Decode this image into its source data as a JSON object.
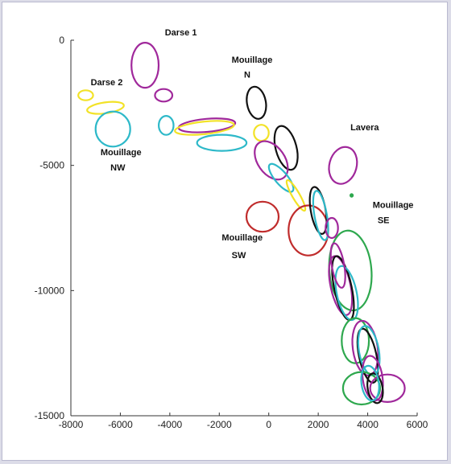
{
  "chart_data": {
    "type": "scatter",
    "title": "",
    "xlabel": "",
    "ylabel": "",
    "xlim": [
      -8000,
      6000
    ],
    "ylim": [
      -15000,
      0
    ],
    "x_ticks": [
      "-8000",
      "-6000",
      "-4000",
      "-2000",
      "0",
      "2000",
      "4000",
      "6000"
    ],
    "y_ticks": [
      "0",
      "-5000",
      "-10000",
      "-15000"
    ],
    "grid": false,
    "legend": "none",
    "colors": {
      "magenta": "#a0289b",
      "yellow": "#f2e227",
      "cyan": "#2eb9c9",
      "black": "#111111",
      "red": "#c02c2c",
      "green": "#2ea84e"
    },
    "annotations": [
      {
        "text": "Darse 1",
        "x": -4200,
        "y": 200
      },
      {
        "text": "Darse 2",
        "x": -7200,
        "y": -1800
      },
      {
        "text": "Mouillage",
        "x": -1500,
        "y": -900
      },
      {
        "text": "N",
        "x": -1000,
        "y": -1500
      },
      {
        "text": "Lavera",
        "x": 3300,
        "y": -3600
      },
      {
        "text": "Mouillage",
        "x": -6800,
        "y": -4600
      },
      {
        "text": "NW",
        "x": -6400,
        "y": -5200
      },
      {
        "text": "Mouillage",
        "x": 4200,
        "y": -6700
      },
      {
        "text": "SE",
        "x": 4400,
        "y": -7300
      },
      {
        "text": "Mouillage",
        "x": -1900,
        "y": -8000
      },
      {
        "text": "SW",
        "x": -1500,
        "y": -8700
      }
    ],
    "ellipses": [
      {
        "color": "magenta",
        "cx": -5000,
        "cy": -1000,
        "rx": 550,
        "ry": 900,
        "angle": 0
      },
      {
        "color": "magenta",
        "cx": -4250,
        "cy": -2200,
        "rx": 350,
        "ry": 250,
        "angle": 0
      },
      {
        "color": "yellow",
        "cx": -7400,
        "cy": -2200,
        "rx": 300,
        "ry": 200,
        "angle": 0
      },
      {
        "color": "yellow",
        "cx": -6600,
        "cy": -2700,
        "rx": 750,
        "ry": 220,
        "angle": -8
      },
      {
        "color": "cyan",
        "cx": -6300,
        "cy": -3550,
        "rx": 700,
        "ry": 700,
        "angle": 0
      },
      {
        "color": "cyan",
        "cx": -4150,
        "cy": -3400,
        "rx": 300,
        "ry": 380,
        "angle": 0
      },
      {
        "color": "magenta",
        "cx": -2500,
        "cy": -3400,
        "rx": 1150,
        "ry": 260,
        "angle": -5
      },
      {
        "color": "yellow",
        "cx": -2600,
        "cy": -3500,
        "rx": 1200,
        "ry": 250,
        "angle": -6
      },
      {
        "color": "cyan",
        "cx": -1900,
        "cy": -4100,
        "rx": 1000,
        "ry": 320,
        "angle": 0
      },
      {
        "color": "black",
        "cx": -500,
        "cy": -2500,
        "rx": 380,
        "ry": 650,
        "angle": -10
      },
      {
        "color": "yellow",
        "cx": -300,
        "cy": -3700,
        "rx": 300,
        "ry": 320,
        "angle": 0
      },
      {
        "color": "black",
        "cx": 700,
        "cy": -4300,
        "rx": 420,
        "ry": 900,
        "angle": -15
      },
      {
        "color": "magenta",
        "cx": 100,
        "cy": -4800,
        "rx": 550,
        "ry": 850,
        "angle": -35
      },
      {
        "color": "cyan",
        "cx": 500,
        "cy": -5500,
        "rx": 250,
        "ry": 700,
        "angle": -40
      },
      {
        "color": "yellow",
        "cx": 1100,
        "cy": -6200,
        "rx": 150,
        "ry": 700,
        "angle": -30
      },
      {
        "color": "magenta",
        "cx": 3000,
        "cy": -5000,
        "rx": 550,
        "ry": 750,
        "angle": 15
      },
      {
        "color": "green",
        "cx": 3350,
        "cy": -6200,
        "rx": 50,
        "ry": 50,
        "angle": 0
      },
      {
        "color": "red",
        "cx": -250,
        "cy": -7050,
        "rx": 650,
        "ry": 600,
        "angle": 0
      },
      {
        "color": "red",
        "cx": 1600,
        "cy": -7600,
        "rx": 800,
        "ry": 1000,
        "angle": 0
      },
      {
        "color": "black",
        "cx": 2000,
        "cy": -6800,
        "rx": 300,
        "ry": 950,
        "angle": -10
      },
      {
        "color": "cyan",
        "cx": 2100,
        "cy": -7000,
        "rx": 250,
        "ry": 1000,
        "angle": -10
      },
      {
        "color": "magenta",
        "cx": 2550,
        "cy": -7500,
        "rx": 250,
        "ry": 400,
        "angle": 0
      },
      {
        "color": "green",
        "cx": 3300,
        "cy": -9200,
        "rx": 850,
        "ry": 1600,
        "angle": -5
      },
      {
        "color": "magenta",
        "cx": 2900,
        "cy": -9800,
        "rx": 400,
        "ry": 1200,
        "angle": -12
      },
      {
        "color": "black",
        "cx": 3000,
        "cy": -9900,
        "rx": 350,
        "ry": 1300,
        "angle": -12
      },
      {
        "color": "cyan",
        "cx": 3150,
        "cy": -10100,
        "rx": 400,
        "ry": 1100,
        "angle": -12
      },
      {
        "color": "magenta",
        "cx": 2800,
        "cy": -9000,
        "rx": 250,
        "ry": 900,
        "angle": -10
      },
      {
        "color": "green",
        "cx": 3500,
        "cy": -12000,
        "rx": 550,
        "ry": 900,
        "angle": 0
      },
      {
        "color": "magenta",
        "cx": 3900,
        "cy": -12300,
        "rx": 500,
        "ry": 1100,
        "angle": -8
      },
      {
        "color": "black",
        "cx": 4000,
        "cy": -12600,
        "rx": 350,
        "ry": 1100,
        "angle": -12
      },
      {
        "color": "cyan",
        "cx": 4050,
        "cy": -12400,
        "rx": 400,
        "ry": 1000,
        "angle": -10
      },
      {
        "color": "magenta",
        "cx": 4200,
        "cy": -13500,
        "rx": 400,
        "ry": 900,
        "angle": -8
      },
      {
        "color": "green",
        "cx": 3750,
        "cy": -13900,
        "rx": 750,
        "ry": 650,
        "angle": 0
      },
      {
        "color": "magenta",
        "cx": 4800,
        "cy": -13900,
        "rx": 700,
        "ry": 550,
        "angle": 0
      },
      {
        "color": "black",
        "cx": 4300,
        "cy": -13900,
        "rx": 300,
        "ry": 600,
        "angle": -10
      },
      {
        "color": "cyan",
        "cx": 4100,
        "cy": -13700,
        "rx": 350,
        "ry": 700,
        "angle": -8
      }
    ]
  }
}
